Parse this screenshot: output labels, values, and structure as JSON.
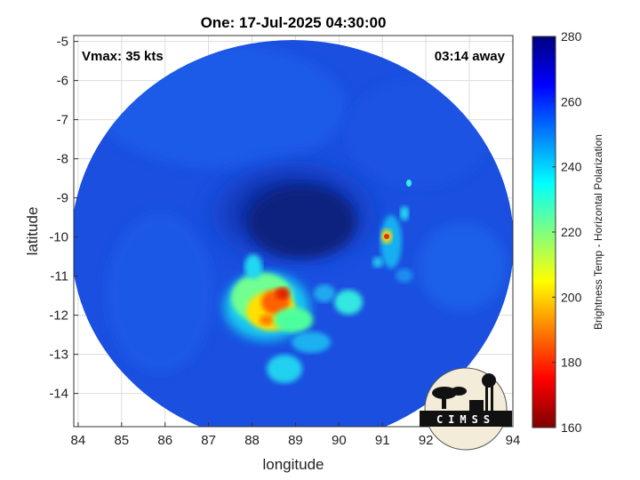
{
  "title": "One: 17-Jul-2025 04:30:00",
  "annotations": {
    "vmax": "Vmax: 35 kts",
    "away": "03:14 away"
  },
  "axes": {
    "xlabel": "longitude",
    "ylabel": "latitude",
    "xlim": [
      83.9,
      94.0
    ],
    "ylim": [
      -14.85,
      -4.85
    ],
    "xticks": [
      84,
      85,
      86,
      87,
      88,
      89,
      90,
      91,
      92,
      93,
      94
    ],
    "yticks": [
      -5,
      -6,
      -7,
      -8,
      -9,
      -10,
      -11,
      -12,
      -13,
      -14
    ],
    "grid": true
  },
  "colorbar": {
    "label": "Brightness Temp - Horizontal Polarization",
    "range": [
      160,
      280
    ],
    "ticks": [
      280,
      260,
      240,
      220,
      200,
      180,
      160
    ],
    "colormap": "jet"
  },
  "logo": {
    "text": "CIMSS"
  },
  "colors": {
    "background_blue": "#1a4fe0",
    "core_dark": "#0a2aa0",
    "warm": "#ffcc00",
    "hot": "#e02000"
  },
  "chart_data": {
    "type": "heatmap",
    "field": "Brightness Temp - Horizontal Polarization",
    "features": [
      {
        "name": "cold-convection-west",
        "lon": 88.5,
        "lat": -12.0,
        "value": 185
      },
      {
        "name": "convection-east",
        "lon": 91.0,
        "lat": -10.0,
        "value": 195
      },
      {
        "name": "band-south",
        "lon": 89.1,
        "lat": -13.4,
        "value": 225
      },
      {
        "name": "band-east",
        "lon": 90.5,
        "lat": -11.7,
        "value": 220
      },
      {
        "name": "center-low",
        "lon": 89.3,
        "lat": -9.7,
        "value": 272
      }
    ]
  }
}
